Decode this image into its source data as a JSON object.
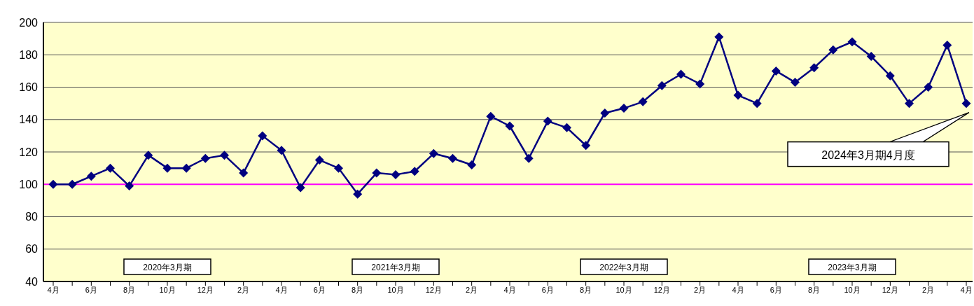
{
  "chart_data": {
    "type": "line",
    "categories": [
      "4月",
      null,
      "6月",
      null,
      "8月",
      null,
      "10月",
      null,
      "12月",
      null,
      "2月",
      null,
      "4月",
      null,
      "6月",
      null,
      "8月",
      null,
      "10月",
      null,
      "12月",
      null,
      "2月",
      null,
      "4月",
      null,
      "6月",
      null,
      "8月",
      null,
      "10月",
      null,
      "12月",
      null,
      "2月",
      null,
      "4月",
      null,
      "6月",
      null,
      "8月",
      null,
      "10月",
      null,
      "12月",
      null,
      "2月",
      null,
      "4月"
    ],
    "series": [
      {
        "color": "#000080",
        "values": [
          100,
          100,
          105,
          110,
          99,
          118,
          110,
          110,
          116,
          118,
          107,
          130,
          121,
          98,
          115,
          110,
          94,
          107,
          106,
          108,
          119,
          116,
          112,
          142,
          136,
          116,
          139,
          135,
          124,
          144,
          147,
          151,
          161,
          168,
          162,
          191,
          155,
          150,
          170,
          163,
          172,
          183,
          188,
          179,
          167,
          150,
          160,
          186,
          150
        ]
      }
    ],
    "ylim": [
      40,
      200
    ],
    "yticks": [
      40,
      60,
      80,
      100,
      120,
      140,
      160,
      180,
      200
    ],
    "grid": "y",
    "marker": "diamond",
    "line_style": "solid",
    "ref_lines": [
      {
        "axis": "y",
        "value": 100,
        "color": "#ff00ff"
      }
    ],
    "annotations": [
      "2020年3月期",
      "2021年3月期",
      "2022年3月期",
      "2023年3月期",
      "2024年3月期4月度"
    ]
  }
}
